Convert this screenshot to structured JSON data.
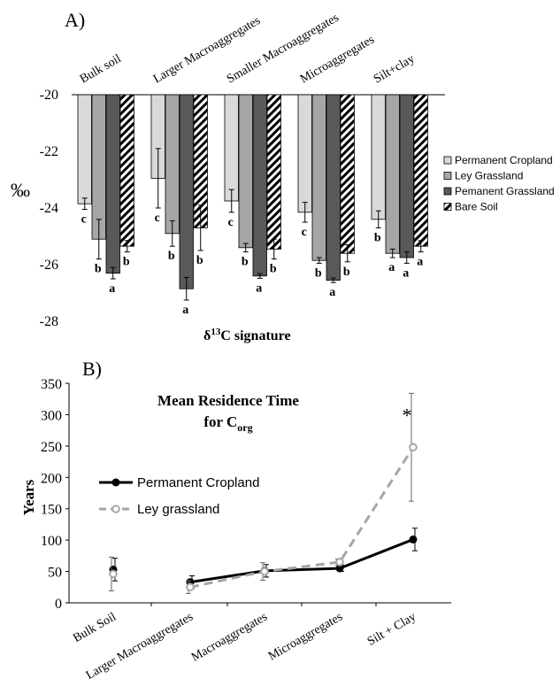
{
  "chart_data": [
    {
      "type": "bar",
      "panel_label": "A)",
      "categories": [
        "Bulk soil",
        "Larger Macroaggregates",
        "Smaller Macroaggregates",
        "Microaggregates",
        "Silt+clay"
      ],
      "ylabel": "‰",
      "xlabel": "δ13C signature",
      "xlabel_main": "δ",
      "xlabel_sup": "13",
      "xlabel_tail": "C signature",
      "ylim": [
        -28,
        -20
      ],
      "yticks": [
        -20,
        -22,
        -24,
        -26,
        -28
      ],
      "legend_position": "right",
      "series": [
        {
          "name": "Permanent Cropland",
          "color": "#d9d9d9",
          "pattern": "solid",
          "values": [
            -23.85,
            -22.95,
            -23.75,
            -24.15,
            -24.4
          ],
          "errors": [
            0.2,
            1.05,
            0.4,
            0.35,
            0.3
          ],
          "letters": [
            "c",
            "c",
            "c",
            "c",
            "b"
          ]
        },
        {
          "name": "Ley Grassland",
          "color": "#a6a6a6",
          "pattern": "solid",
          "values": [
            -25.1,
            -24.9,
            -25.4,
            -25.85,
            -25.6
          ],
          "errors": [
            0.7,
            0.45,
            0.15,
            0.1,
            0.15
          ],
          "letters": [
            "b",
            "b",
            "b",
            "b",
            "a"
          ]
        },
        {
          "name": "Pemanent Grassland",
          "color": "#595959",
          "pattern": "solid",
          "values": [
            -26.3,
            -26.85,
            -26.4,
            -26.55,
            -25.75
          ],
          "errors": [
            0.2,
            0.4,
            0.08,
            0.08,
            0.2
          ],
          "letters": [
            "a",
            "a",
            "a",
            "a",
            "a"
          ]
        },
        {
          "name": "Bare Soil",
          "color": "#ffffff",
          "pattern": "hatch",
          "values": [
            -25.35,
            -24.7,
            -25.45,
            -25.6,
            -25.35
          ],
          "errors": [
            0.2,
            0.8,
            0.35,
            0.3,
            0.2
          ],
          "letters": [
            "b",
            "b",
            "b",
            "b",
            "a"
          ]
        }
      ]
    },
    {
      "type": "line",
      "panel_label": "B)",
      "title_line1": "Mean Residence Time",
      "title_line2_main": "for C",
      "title_line2_sub": "org",
      "ylabel": "Years",
      "ylim": [
        0,
        350
      ],
      "yticks": [
        0,
        50,
        100,
        150,
        200,
        250,
        300,
        350
      ],
      "categories": [
        "Bulk Soil",
        "Larger Macroaggregates",
        "Macroaggregates",
        "Microaggregates",
        "Silt + Clay"
      ],
      "annotation": "*",
      "legend_position": "left",
      "series": [
        {
          "name": "Permanent Cropland",
          "color": "#000000",
          "style": "solid",
          "values": [
            53,
            33,
            51,
            55,
            101
          ],
          "errors": [
            18,
            10,
            10,
            5,
            18
          ]
        },
        {
          "name": "Ley grassland",
          "color": "#a6a6a6",
          "style": "dashed",
          "values": [
            46,
            25,
            50,
            65,
            248
          ],
          "errors": [
            27,
            10,
            14,
            5,
            86
          ]
        }
      ]
    }
  ]
}
